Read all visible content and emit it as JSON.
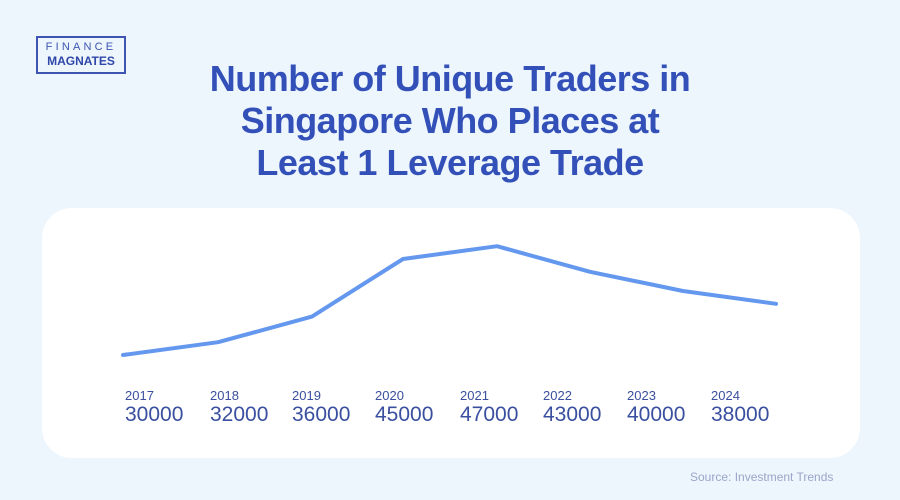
{
  "logo": {
    "line1": "FINANCE",
    "line2": "MAGNATES"
  },
  "title_lines": [
    "Number of Unique Traders in",
    "Singapore Who Places at",
    "Least 1 Leverage Trade"
  ],
  "source": "Source: Investment Trends",
  "colors": {
    "line": "#6497ee",
    "title": "#3350b8",
    "background": "#edf5fd"
  },
  "chart_data": {
    "type": "line",
    "title": "Number of Unique Traders in Singapore Who Places at Least 1 Leverage Trade",
    "categories": [
      "2017",
      "2018",
      "2019",
      "2020",
      "2021",
      "2022",
      "2023",
      "2024"
    ],
    "values": [
      30000,
      32000,
      36000,
      45000,
      47000,
      43000,
      40000,
      38000
    ],
    "labels": [
      "30000",
      "32000",
      "36000",
      "45000",
      "47000",
      "43000",
      "40000",
      "38000"
    ],
    "grid": false,
    "legend": "none"
  }
}
